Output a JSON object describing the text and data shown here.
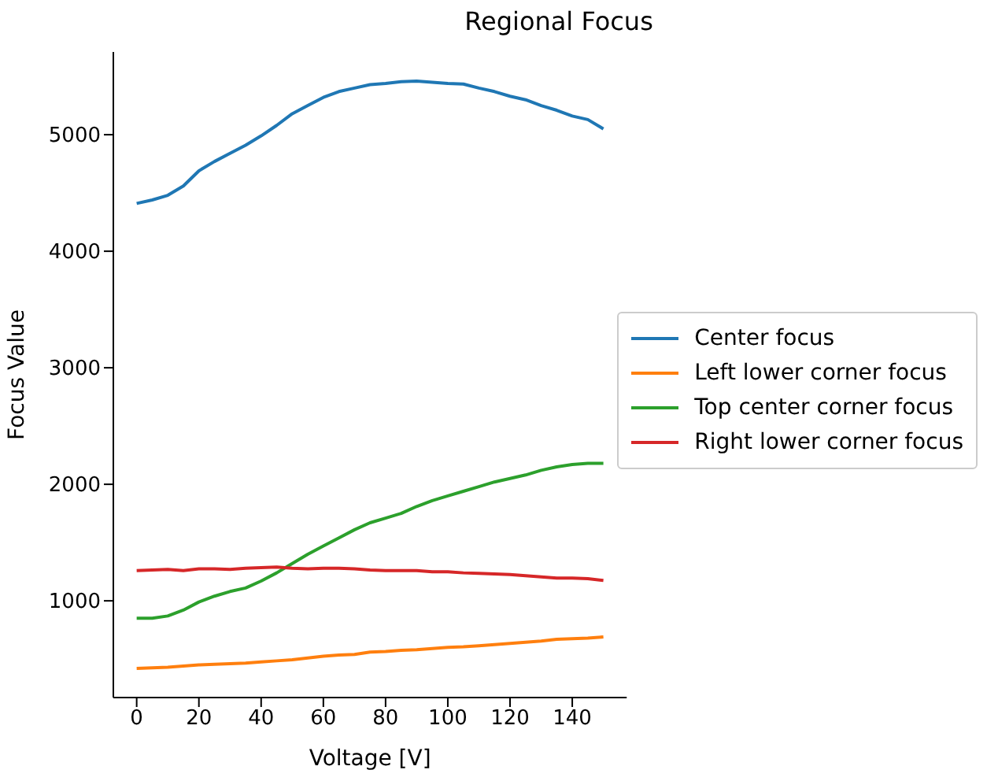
{
  "chart_data": {
    "type": "line",
    "title": "Regional Focus",
    "xlabel": "Voltage [V]",
    "ylabel": "Focus Value",
    "x": [
      0,
      5,
      10,
      15,
      20,
      25,
      30,
      35,
      40,
      45,
      50,
      55,
      60,
      65,
      70,
      75,
      80,
      85,
      90,
      95,
      100,
      105,
      110,
      115,
      120,
      125,
      130,
      135,
      140,
      145,
      150
    ],
    "series": [
      {
        "name": "Center focus",
        "color": "#1f77b4",
        "values": [
          4410,
          4440,
          4480,
          4560,
          4690,
          4770,
          4840,
          4910,
          4990,
          5080,
          5180,
          5250,
          5320,
          5370,
          5400,
          5430,
          5440,
          5455,
          5460,
          5450,
          5440,
          5435,
          5400,
          5370,
          5330,
          5300,
          5250,
          5210,
          5160,
          5130,
          5050
        ]
      },
      {
        "name": "Left lower corner focus",
        "color": "#ff7f0e",
        "values": [
          420,
          425,
          430,
          440,
          450,
          455,
          460,
          465,
          475,
          485,
          495,
          510,
          525,
          535,
          540,
          560,
          565,
          575,
          580,
          590,
          600,
          605,
          615,
          625,
          635,
          645,
          655,
          670,
          675,
          680,
          690
        ]
      },
      {
        "name": "Top center corner focus",
        "color": "#2ca02c",
        "values": [
          850,
          850,
          870,
          920,
          990,
          1040,
          1080,
          1110,
          1170,
          1240,
          1320,
          1400,
          1470,
          1540,
          1610,
          1670,
          1710,
          1750,
          1810,
          1860,
          1900,
          1940,
          1980,
          2020,
          2050,
          2080,
          2120,
          2150,
          2170,
          2180,
          2180
        ]
      },
      {
        "name": "Right lower corner focus",
        "color": "#d62728",
        "values": [
          1260,
          1265,
          1270,
          1260,
          1275,
          1275,
          1270,
          1280,
          1285,
          1290,
          1280,
          1275,
          1280,
          1280,
          1275,
          1265,
          1260,
          1260,
          1260,
          1250,
          1250,
          1240,
          1235,
          1230,
          1225,
          1215,
          1205,
          1195,
          1195,
          1190,
          1175
        ]
      }
    ],
    "xlim": [
      -7.5,
      157.5
    ],
    "xticks": [
      0,
      20,
      40,
      60,
      80,
      100,
      120,
      140
    ],
    "ylim": [
      170,
      5710
    ],
    "yticks": [
      1000,
      2000,
      3000,
      4000,
      5000
    ],
    "legend": "right",
    "grid": false,
    "marker": "none",
    "line_style": "solid"
  }
}
